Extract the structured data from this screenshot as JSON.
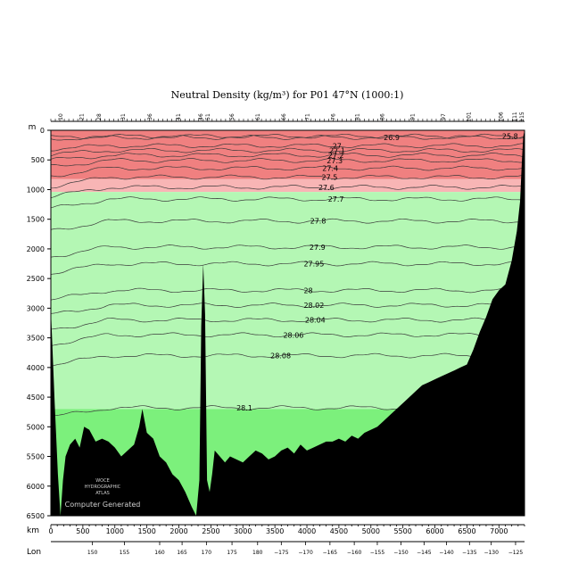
{
  "chart_data": {
    "type": "area",
    "title": "Neutral Density (kg/m³) for P01 47°N (1000:1)",
    "depth_unit": "m",
    "distance_unit": "km",
    "longitude_label": "Lon",
    "credit": {
      "line1": "WOCE",
      "line2": "HYDROGRAPHIC",
      "line3": "ATLAS",
      "line4": "Computer Generated"
    },
    "x_range_km": [
      0,
      7400
    ],
    "y_range_m": [
      0,
      6500
    ],
    "y_ticks": [
      0,
      500,
      1000,
      1500,
      2000,
      2500,
      3000,
      3500,
      4000,
      4500,
      5000,
      5500,
      6000,
      6500
    ],
    "x_ticks": [
      0,
      500,
      1000,
      1500,
      2000,
      2500,
      3000,
      3500,
      4000,
      4500,
      5000,
      5500,
      6000,
      6500,
      7000
    ],
    "lon_ticks": [
      {
        "label": "150",
        "km": 650
      },
      {
        "label": "155",
        "km": 1150
      },
      {
        "label": "160",
        "km": 1700
      },
      {
        "label": "165",
        "km": 2050
      },
      {
        "label": "170",
        "km": 2430
      },
      {
        "label": "175",
        "km": 2830
      },
      {
        "label": "180",
        "km": 3230
      },
      {
        "label": "−175",
        "km": 3600
      },
      {
        "label": "−170",
        "km": 3980
      },
      {
        "label": "−165",
        "km": 4360
      },
      {
        "label": "−160",
        "km": 4740
      },
      {
        "label": "−155",
        "km": 5100
      },
      {
        "label": "−150",
        "km": 5470
      },
      {
        "label": "−145",
        "km": 5830
      },
      {
        "label": "−140",
        "km": 6180
      },
      {
        "label": "−135",
        "km": 6540
      },
      {
        "label": "−130",
        "km": 6880
      },
      {
        "label": "−125",
        "km": 7260
      }
    ],
    "stations": [
      {
        "label": "10",
        "km": 150
      },
      {
        "label": "21",
        "km": 480
      },
      {
        "label": "28",
        "km": 750
      },
      {
        "label": "31",
        "km": 1130
      },
      {
        "label": "36",
        "km": 1550
      },
      {
        "label": "41",
        "km": 1990
      },
      {
        "label": "46",
        "km": 2340
      },
      {
        "label": "51",
        "km": 2450
      },
      {
        "label": "56",
        "km": 2830
      },
      {
        "label": "61",
        "km": 3230
      },
      {
        "label": "66",
        "km": 3640
      },
      {
        "label": "71",
        "km": 4010
      },
      {
        "label": "76",
        "km": 4410
      },
      {
        "label": "81",
        "km": 4790
      },
      {
        "label": "86",
        "km": 5180
      },
      {
        "label": "91",
        "km": 5650
      },
      {
        "label": "97",
        "km": 6130
      },
      {
        "label": "101",
        "km": 6530
      },
      {
        "label": "106",
        "km": 7030
      },
      {
        "label": "111",
        "km": 7250
      },
      {
        "label": "115",
        "km": 7360
      }
    ],
    "fill_bands": [
      {
        "from": 0,
        "to": 820,
        "color": "#f08080"
      },
      {
        "from": 820,
        "to": 1040,
        "color": "#f8b5b5"
      },
      {
        "from": 1040,
        "to": 4700,
        "color": "#b4f7b4"
      },
      {
        "from": 4700,
        "to": 6500,
        "color": "#7cf07c"
      }
    ],
    "contours": [
      {
        "label": "26.9",
        "label_km": 5200,
        "depth": 120
      },
      {
        "label": "27",
        "label_km": 4400,
        "depth": 260
      },
      {
        "label": "27.1",
        "label_km": 4350,
        "depth": 340
      },
      {
        "label": "27.2",
        "label_km": 4330,
        "depth": 420
      },
      {
        "label": "27.3",
        "label_km": 4310,
        "depth": 510
      },
      {
        "label": "27.4",
        "label_km": 4240,
        "depth": 640
      },
      {
        "label": "27.5",
        "label_km": 4230,
        "depth": 790
      },
      {
        "label": "27.6",
        "label_km": 4180,
        "depth": 960
      },
      {
        "label": "27.7",
        "label_km": 4330,
        "depth": 1160
      },
      {
        "label": "27.8",
        "label_km": 4050,
        "depth": 1530
      },
      {
        "label": "27.9",
        "label_km": 4040,
        "depth": 1970
      },
      {
        "label": "27.95",
        "label_km": 3950,
        "depth": 2250
      },
      {
        "label": "28",
        "label_km": 3950,
        "depth": 2700
      },
      {
        "label": "28.02",
        "label_km": 3950,
        "depth": 2950
      },
      {
        "label": "28.04",
        "label_km": 3970,
        "depth": 3200
      },
      {
        "label": "28.06",
        "label_km": 3630,
        "depth": 3450
      },
      {
        "label": "28.08",
        "label_km": 3430,
        "depth": 3800
      },
      {
        "label": "28.1",
        "label_km": 2900,
        "depth": 4680
      },
      {
        "label": "25.8",
        "label_km": 7050,
        "depth": 100
      }
    ],
    "bottom_profile": [
      [
        0,
        3000
      ],
      [
        60,
        4600
      ],
      [
        110,
        5800
      ],
      [
        150,
        6500
      ],
      [
        190,
        5900
      ],
      [
        230,
        5500
      ],
      [
        300,
        5300
      ],
      [
        380,
        5200
      ],
      [
        450,
        5350
      ],
      [
        520,
        5000
      ],
      [
        600,
        5050
      ],
      [
        700,
        5250
      ],
      [
        800,
        5200
      ],
      [
        900,
        5250
      ],
      [
        1000,
        5350
      ],
      [
        1100,
        5500
      ],
      [
        1200,
        5400
      ],
      [
        1300,
        5300
      ],
      [
        1380,
        5000
      ],
      [
        1430,
        4700
      ],
      [
        1500,
        5100
      ],
      [
        1600,
        5200
      ],
      [
        1700,
        5500
      ],
      [
        1800,
        5600
      ],
      [
        1900,
        5800
      ],
      [
        2000,
        5900
      ],
      [
        2100,
        6100
      ],
      [
        2200,
        6350
      ],
      [
        2270,
        6500
      ],
      [
        2320,
        5900
      ],
      [
        2350,
        3300
      ],
      [
        2380,
        2250
      ],
      [
        2410,
        3100
      ],
      [
        2440,
        5900
      ],
      [
        2480,
        6100
      ],
      [
        2520,
        5800
      ],
      [
        2560,
        5400
      ],
      [
        2640,
        5500
      ],
      [
        2720,
        5600
      ],
      [
        2800,
        5500
      ],
      [
        2900,
        5550
      ],
      [
        3000,
        5600
      ],
      [
        3100,
        5500
      ],
      [
        3200,
        5400
      ],
      [
        3300,
        5450
      ],
      [
        3400,
        5550
      ],
      [
        3500,
        5500
      ],
      [
        3600,
        5400
      ],
      [
        3700,
        5350
      ],
      [
        3800,
        5450
      ],
      [
        3900,
        5300
      ],
      [
        4000,
        5400
      ],
      [
        4100,
        5350
      ],
      [
        4200,
        5300
      ],
      [
        4300,
        5250
      ],
      [
        4400,
        5250
      ],
      [
        4500,
        5200
      ],
      [
        4600,
        5250
      ],
      [
        4700,
        5150
      ],
      [
        4800,
        5200
      ],
      [
        4900,
        5100
      ],
      [
        5000,
        5050
      ],
      [
        5100,
        5000
      ],
      [
        5200,
        4900
      ],
      [
        5300,
        4800
      ],
      [
        5400,
        4700
      ],
      [
        5500,
        4600
      ],
      [
        5600,
        4500
      ],
      [
        5700,
        4400
      ],
      [
        5800,
        4300
      ],
      [
        5900,
        4250
      ],
      [
        6000,
        4200
      ],
      [
        6100,
        4150
      ],
      [
        6200,
        4100
      ],
      [
        6300,
        4050
      ],
      [
        6400,
        4000
      ],
      [
        6500,
        3950
      ],
      [
        6600,
        3700
      ],
      [
        6700,
        3400
      ],
      [
        6800,
        3150
      ],
      [
        6900,
        2850
      ],
      [
        7000,
        2700
      ],
      [
        7100,
        2600
      ],
      [
        7200,
        2200
      ],
      [
        7280,
        1700
      ],
      [
        7330,
        1200
      ],
      [
        7360,
        500
      ],
      [
        7380,
        100
      ],
      [
        7400,
        0
      ]
    ]
  }
}
